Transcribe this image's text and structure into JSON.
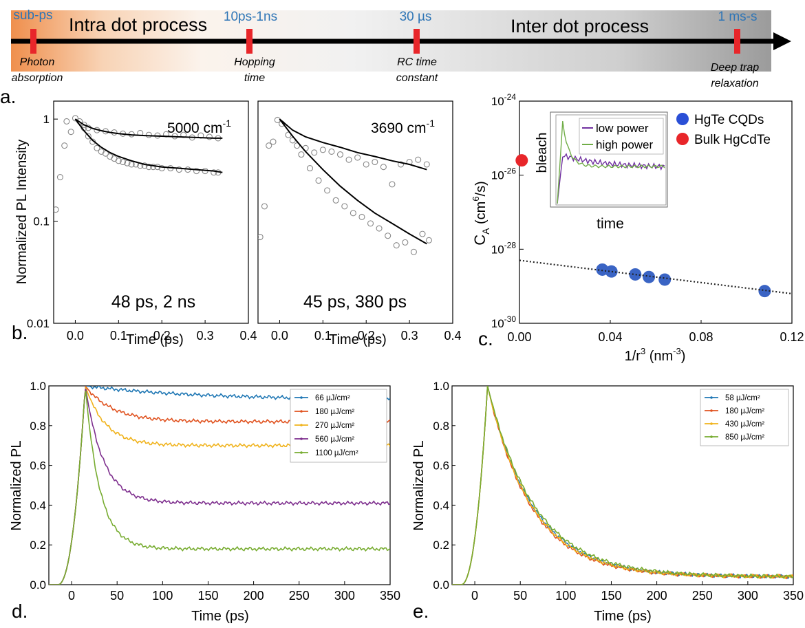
{
  "timeline": {
    "regions": [
      "Intra dot process",
      "Inter dot process"
    ],
    "events": [
      {
        "timescale": "sub-ps",
        "label_lines": [
          "Photon",
          "absorption"
        ]
      },
      {
        "timescale": "10ps-1ns",
        "label_lines": [
          "Hopping",
          "time"
        ]
      },
      {
        "timescale": "30 µs",
        "label_lines": [
          "RC time",
          "constant"
        ]
      },
      {
        "timescale": "1 ms-s",
        "label_lines": [
          "Deep trap",
          "relaxation"
        ]
      }
    ],
    "colors": {
      "accent": "#2e75b6",
      "marker": "#e8262a",
      "gradient_start": "#f0a063"
    }
  },
  "panel_labels": {
    "a": "a.",
    "b": "b.",
    "c": "c.",
    "d": "d.",
    "e": "e."
  },
  "chart_data": [
    {
      "id": "a-left",
      "type": "scatter",
      "ylabel": "Normalized PL Intensity",
      "xlabel": "Time (ps)",
      "xlim": [
        -0.05,
        0.4
      ],
      "ylim": [
        0.01,
        1.5
      ],
      "yscale": "log",
      "xticks": [
        "0.0",
        "0.1",
        "0.2",
        "0.3",
        "0.4"
      ],
      "yticks": [
        "0.01",
        "0.1",
        "1"
      ],
      "annotations": [
        "5000 cm",
        "-1",
        "48 ps, 2 ns"
      ],
      "series": [
        {
          "kind": "markers",
          "x": [
            -0.045,
            -0.035,
            -0.025,
            -0.02,
            -0.01,
            0.0,
            0.01,
            0.02,
            0.03,
            0.05,
            0.07,
            0.09,
            0.11,
            0.13,
            0.15,
            0.17,
            0.19,
            0.21,
            0.23,
            0.25,
            0.27,
            0.29,
            0.31,
            0.33
          ],
          "y": [
            0.13,
            0.27,
            0.55,
            0.95,
            0.75,
            1.02,
            0.95,
            0.88,
            0.82,
            0.78,
            0.76,
            0.74,
            0.72,
            0.71,
            0.73,
            0.7,
            0.69,
            0.71,
            0.68,
            0.7,
            0.66,
            0.69,
            0.67,
            0.65
          ]
        },
        {
          "kind": "markers",
          "x": [
            0.02,
            0.03,
            0.04,
            0.05,
            0.06,
            0.07,
            0.08,
            0.09,
            0.1,
            0.11,
            0.12,
            0.13,
            0.14,
            0.15,
            0.16,
            0.17,
            0.18,
            0.19,
            0.2,
            0.22,
            0.24,
            0.26,
            0.28,
            0.3,
            0.32,
            0.33
          ],
          "y": [
            0.82,
            0.68,
            0.6,
            0.52,
            0.48,
            0.46,
            0.43,
            0.41,
            0.39,
            0.38,
            0.37,
            0.36,
            0.36,
            0.35,
            0.35,
            0.34,
            0.34,
            0.34,
            0.33,
            0.33,
            0.32,
            0.32,
            0.31,
            0.31,
            0.3,
            0.3
          ]
        },
        {
          "kind": "fit",
          "x": [
            0.0,
            0.02,
            0.04,
            0.06,
            0.08,
            0.1,
            0.13,
            0.16,
            0.2,
            0.24,
            0.28,
            0.32,
            0.34
          ],
          "y": [
            1.0,
            0.88,
            0.81,
            0.77,
            0.74,
            0.72,
            0.7,
            0.69,
            0.68,
            0.67,
            0.66,
            0.65,
            0.65
          ]
        },
        {
          "kind": "fit",
          "x": [
            0.0,
            0.02,
            0.04,
            0.06,
            0.08,
            0.1,
            0.13,
            0.16,
            0.2,
            0.24,
            0.28,
            0.32,
            0.34
          ],
          "y": [
            1.0,
            0.77,
            0.62,
            0.53,
            0.47,
            0.43,
            0.39,
            0.36,
            0.34,
            0.33,
            0.32,
            0.31,
            0.3
          ]
        }
      ]
    },
    {
      "id": "a-right",
      "type": "scatter",
      "xlabel": "Time (ps)",
      "xlim": [
        -0.05,
        0.4
      ],
      "ylim": [
        0.01,
        1.5
      ],
      "yscale": "log",
      "xticks": [
        "0.0",
        "0.1",
        "0.2",
        "0.3",
        "0.4"
      ],
      "annotations": [
        "3690 cm",
        "-1",
        "45 ps, 380 ps"
      ],
      "series": [
        {
          "kind": "markers",
          "x": [
            -0.045,
            -0.035,
            -0.025,
            -0.015,
            -0.005,
            0.005,
            0.02,
            0.04,
            0.06,
            0.08,
            0.1,
            0.12,
            0.14,
            0.16,
            0.18,
            0.2,
            0.22,
            0.24,
            0.26,
            0.28,
            0.3,
            0.32,
            0.34
          ],
          "y": [
            0.07,
            0.14,
            0.55,
            0.6,
            0.98,
            0.9,
            0.7,
            0.55,
            0.52,
            0.47,
            0.5,
            0.48,
            0.45,
            0.4,
            0.42,
            0.36,
            0.38,
            0.34,
            0.23,
            0.36,
            0.38,
            0.4,
            0.36
          ]
        },
        {
          "kind": "markers",
          "x": [
            0.03,
            0.05,
            0.07,
            0.09,
            0.11,
            0.13,
            0.15,
            0.17,
            0.19,
            0.21,
            0.23,
            0.25,
            0.27,
            0.29,
            0.31,
            0.33,
            0.345
          ],
          "y": [
            0.62,
            0.45,
            0.33,
            0.25,
            0.2,
            0.16,
            0.14,
            0.12,
            0.11,
            0.095,
            0.085,
            0.072,
            0.058,
            0.062,
            0.05,
            0.075,
            0.065
          ]
        },
        {
          "kind": "fit",
          "x": [
            0.0,
            0.03,
            0.06,
            0.1,
            0.14,
            0.18,
            0.22,
            0.26,
            0.3,
            0.34
          ],
          "y": [
            1.0,
            0.78,
            0.67,
            0.59,
            0.53,
            0.47,
            0.43,
            0.39,
            0.36,
            0.32
          ]
        },
        {
          "kind": "fit",
          "x": [
            0.0,
            0.03,
            0.06,
            0.1,
            0.14,
            0.18,
            0.22,
            0.26,
            0.3,
            0.34
          ],
          "y": [
            1.0,
            0.68,
            0.48,
            0.32,
            0.22,
            0.16,
            0.12,
            0.095,
            0.075,
            0.06
          ]
        }
      ]
    },
    {
      "id": "c",
      "type": "scatter",
      "xlabel": "1/r",
      "xlabel_sup": "3",
      "xlabel_unit": " (nm",
      "xlabel_unit_sup": "-3",
      "xlabel_end": ")",
      "ylabel": "C",
      "ylabel_sub": "A",
      "ylabel_unit": " (cm",
      "ylabel_unit_sup": "6",
      "ylabel_end": "/s)",
      "xlim": [
        0,
        0.12
      ],
      "ylim_exp": [
        -30,
        -24
      ],
      "yscale": "log",
      "xticks": [
        "0.00",
        "0.04",
        "0.08",
        "0.12"
      ],
      "yticks": [
        "-30",
        "-28",
        "-26",
        "-24"
      ],
      "ytick_base": "10",
      "legend": [
        {
          "name": "HgTe CQDs",
          "color": "#2a4fd6"
        },
        {
          "name": "Bulk HgCdTe",
          "color": "#e8262a"
        }
      ],
      "series": [
        {
          "name": "HgTe CQDs",
          "x": [
            0.0365,
            0.0405,
            0.051,
            0.057,
            0.064,
            0.108
          ],
          "log10y": [
            -28.55,
            -28.6,
            -28.68,
            -28.75,
            -28.82,
            -29.13
          ]
        },
        {
          "name": "Bulk HgCdTe",
          "x": [
            0.001
          ],
          "log10y": [
            -25.6
          ]
        },
        {
          "name": "fit",
          "kind": "dotted",
          "x": [
            0.0,
            0.12
          ],
          "log10y": [
            -28.3,
            -29.2
          ]
        }
      ],
      "inset": {
        "xlabel": "time",
        "ylabel": "bleach",
        "legend": [
          {
            "name": "low power",
            "color": "#7030a0"
          },
          {
            "name": "high power",
            "color": "#70ad47"
          }
        ]
      }
    },
    {
      "id": "d",
      "type": "line",
      "xlabel": "Time (ps)",
      "ylabel": "Normalized PL",
      "xlim": [
        -25,
        350
      ],
      "ylim": [
        0,
        1.0
      ],
      "xticks": [
        "0",
        "50",
        "100",
        "150",
        "200",
        "250",
        "300",
        "350"
      ],
      "yticks": [
        "0.0",
        "0.2",
        "0.4",
        "0.6",
        "0.8",
        "1.0"
      ],
      "peak_x": 15,
      "series": [
        {
          "name": "66 µJ/cm²",
          "color": "#1f77b4",
          "plateau": 0.93,
          "tau": 120
        },
        {
          "name": "180 µJ/cm²",
          "color": "#e0521f",
          "plateau": 0.82,
          "tau": 30
        },
        {
          "name": "270 µJ/cm²",
          "color": "#f0b21a",
          "plateau": 0.7,
          "tau": 22
        },
        {
          "name": "560 µJ/cm²",
          "color": "#7e2f8e",
          "plateau": 0.41,
          "tau": 20
        },
        {
          "name": "1100 µJ/cm²",
          "color": "#77ac30",
          "plateau": 0.18,
          "tau": 16
        }
      ]
    },
    {
      "id": "e",
      "type": "line",
      "xlabel": "Time (ps)",
      "ylabel": "Normalized PL",
      "xlim": [
        -25,
        350
      ],
      "ylim": [
        0,
        1.0
      ],
      "xticks": [
        "0",
        "50",
        "100",
        "150",
        "200",
        "250",
        "300",
        "350"
      ],
      "yticks": [
        "0.0",
        "0.2",
        "0.4",
        "0.6",
        "0.8",
        "1.0"
      ],
      "peak_x": 14,
      "series": [
        {
          "name": "58 µJ/cm²",
          "color": "#1f77b4",
          "plateau": 0.04,
          "tau": 50
        },
        {
          "name": "180 µJ/cm²",
          "color": "#e0521f",
          "plateau": 0.04,
          "tau": 48
        },
        {
          "name": "430 µJ/cm²",
          "color": "#f0b21a",
          "plateau": 0.04,
          "tau": 49
        },
        {
          "name": "850 µJ/cm²",
          "color": "#77ac30",
          "plateau": 0.04,
          "tau": 52
        }
      ]
    }
  ]
}
